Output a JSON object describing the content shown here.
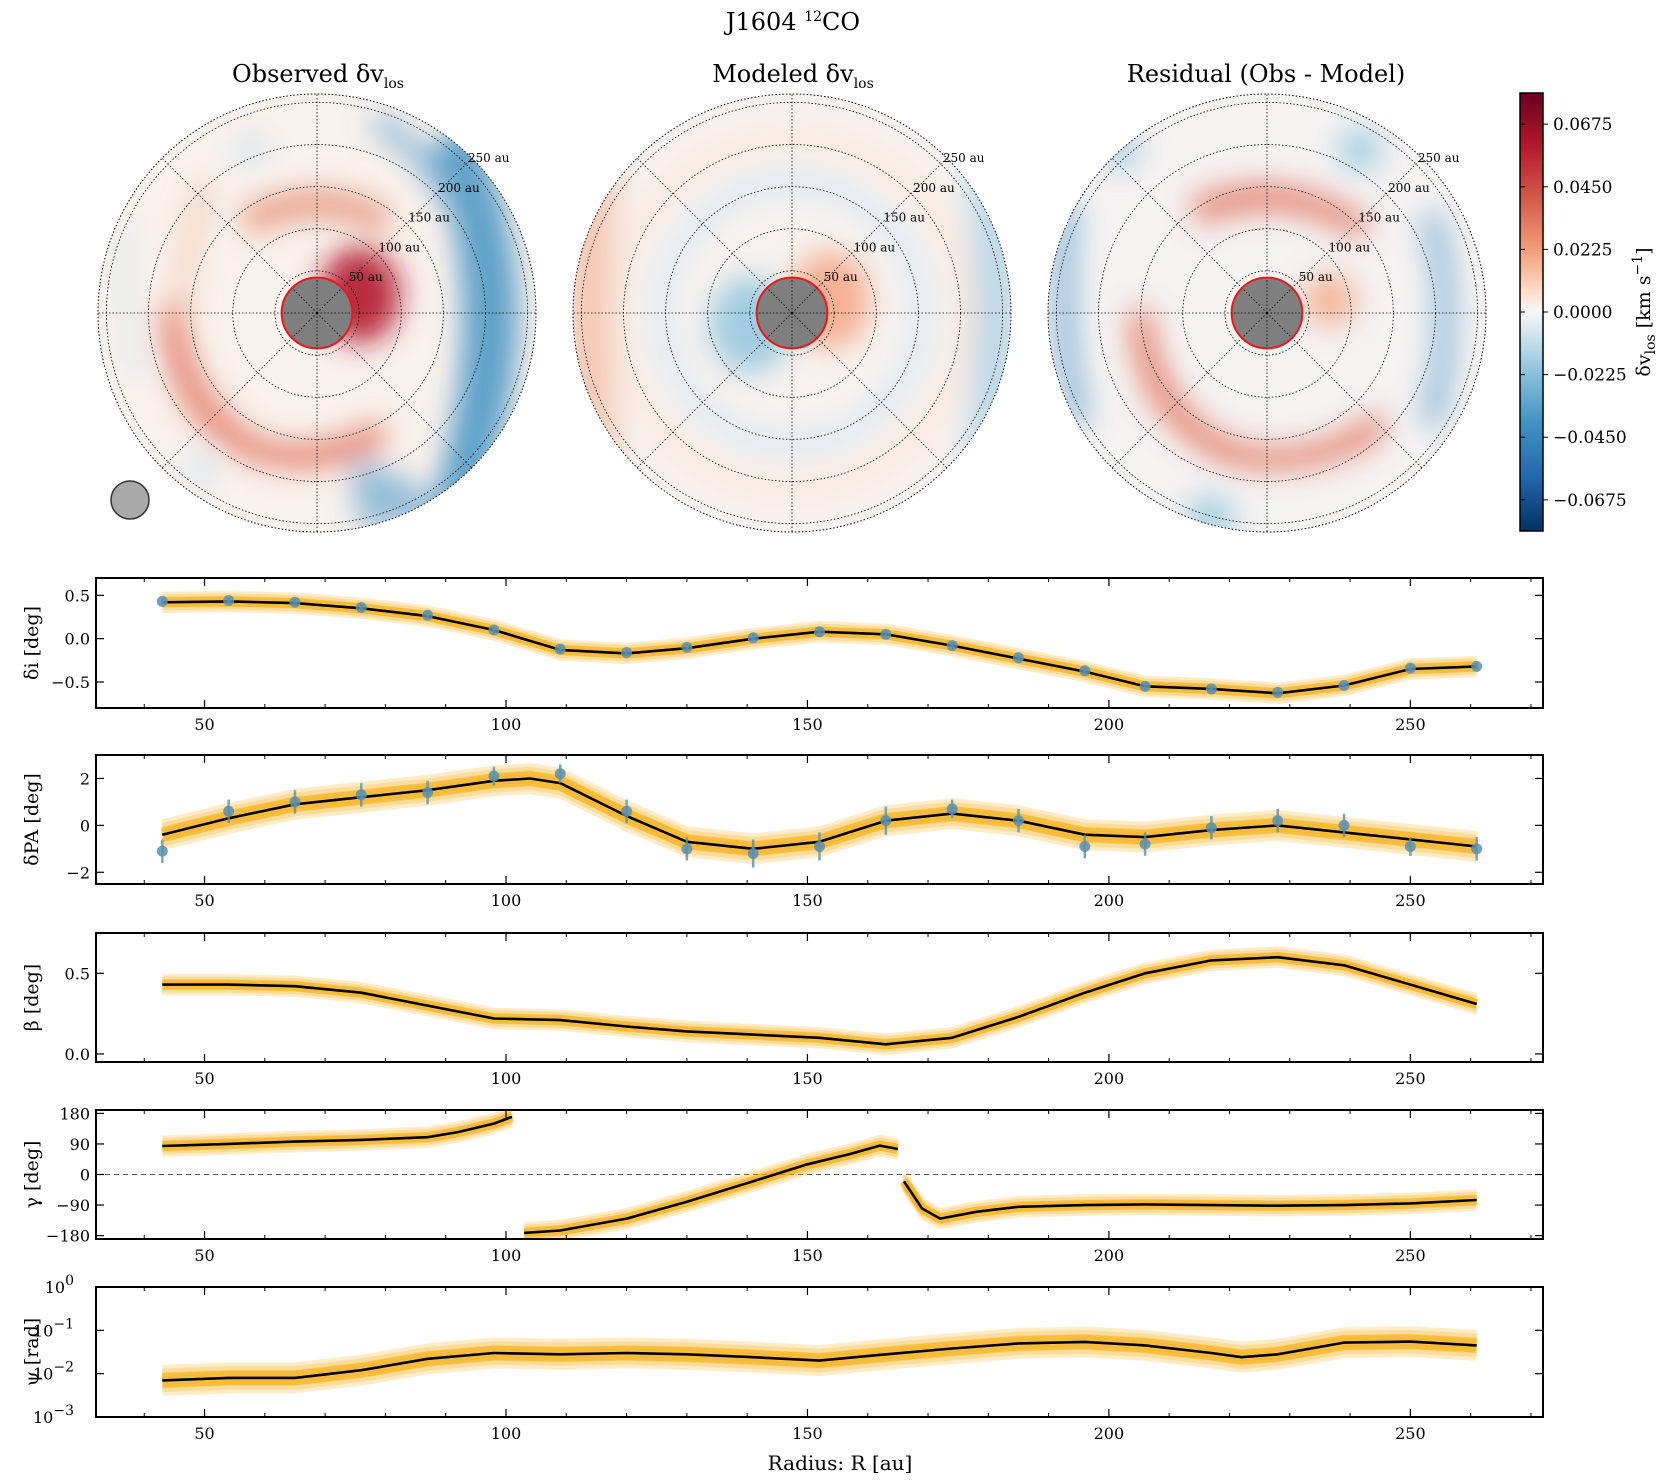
{
  "figure": {
    "title_main": "J1604 ",
    "title_sup": "12",
    "title_tail": "CO",
    "xlabel": "Radius: R [au]"
  },
  "polar_maps": [
    {
      "title": "Observed δv",
      "title_sub": "los"
    },
    {
      "title": "Modeled δv",
      "title_sub": "los"
    },
    {
      "title": "Residual (Obs - Model)",
      "title_sub": ""
    }
  ],
  "ring_labels": [
    "50 au",
    "100 au",
    "150 au",
    "200 au",
    "250 au"
  ],
  "colorbar": {
    "label": "δv",
    "label_sub": "los",
    "label_unit": " [km s",
    "label_sup": "−1",
    "label_close": "]",
    "ticks": [
      "0.0675",
      "0.0450",
      "0.0225",
      "0.0000",
      "−0.0225",
      "−0.0450",
      "−0.0675"
    ],
    "tick_values": [
      0.0675,
      0.045,
      0.0225,
      0.0,
      -0.0225,
      -0.045,
      -0.0675
    ],
    "range": [
      -0.0787,
      0.0787
    ],
    "cmap": [
      "#053061",
      "#2166ac",
      "#4393c3",
      "#92c5de",
      "#d1e5f0",
      "#f7f7f7",
      "#fddbc7",
      "#f4a582",
      "#d6604d",
      "#b2182b",
      "#67001f"
    ]
  },
  "colors": {
    "posterior": "#f5a800",
    "median": "#000000",
    "points": "#5b8fb0",
    "center_disk": "#7f7f7f",
    "inner_ring": "#e41a1c"
  },
  "chart_data": [
    {
      "type": "line",
      "ylabel": "δi [deg]",
      "ylim": [
        -0.8,
        0.7
      ],
      "yticks": [
        0.5,
        0.0,
        -0.5
      ],
      "ytick_labels": [
        "0.5",
        "0.0",
        "−0.5"
      ],
      "xlim": [
        32,
        272
      ],
      "xticks": [
        50,
        100,
        150,
        200,
        250
      ],
      "xtick_labels": [
        "50",
        "100",
        "150",
        "200",
        "250"
      ],
      "series": [
        {
          "x": [
            43,
            54,
            65,
            76,
            87,
            98,
            109,
            120,
            130,
            141,
            152,
            163,
            174,
            185,
            196,
            206,
            217,
            228,
            239,
            250,
            261
          ],
          "y": [
            0.42,
            0.43,
            0.41,
            0.35,
            0.26,
            0.1,
            -0.13,
            -0.17,
            -0.11,
            0.0,
            0.08,
            0.05,
            -0.08,
            -0.23,
            -0.38,
            -0.55,
            -0.58,
            -0.63,
            -0.54,
            -0.35,
            -0.32
          ]
        }
      ],
      "points": {
        "x": [
          43,
          54,
          65,
          76,
          87,
          98,
          109,
          120,
          130,
          141,
          152,
          163,
          174,
          185,
          196,
          206,
          217,
          228,
          239,
          250,
          261
        ],
        "y": [
          0.43,
          0.44,
          0.42,
          0.36,
          0.27,
          0.1,
          -0.12,
          -0.16,
          -0.1,
          0.01,
          0.08,
          0.05,
          -0.08,
          -0.22,
          -0.37,
          -0.55,
          -0.58,
          -0.62,
          -0.54,
          -0.34,
          -0.32
        ],
        "err": [
          0.04,
          0.04,
          0.04,
          0.04,
          0.04,
          0.04,
          0.04,
          0.04,
          0.04,
          0.04,
          0.05,
          0.04,
          0.04,
          0.04,
          0.04,
          0.04,
          0.04,
          0.04,
          0.04,
          0.04,
          0.04
        ]
      }
    },
    {
      "type": "line",
      "ylabel": "δPA [deg]",
      "ylim": [
        -2.5,
        3.0
      ],
      "yticks": [
        2,
        0,
        -2
      ],
      "ytick_labels": [
        "2",
        "0",
        "−2"
      ],
      "xlim": [
        32,
        272
      ],
      "xticks": [
        50,
        100,
        150,
        200,
        250
      ],
      "xtick_labels": [
        "50",
        "100",
        "150",
        "200",
        "250"
      ],
      "series": [
        {
          "x": [
            43,
            54,
            65,
            76,
            87,
            98,
            104,
            109,
            120,
            130,
            141,
            152,
            163,
            174,
            185,
            196,
            206,
            217,
            228,
            239,
            250,
            261
          ],
          "y": [
            -0.4,
            0.3,
            0.9,
            1.2,
            1.5,
            1.9,
            2.0,
            1.8,
            0.4,
            -0.7,
            -1.0,
            -0.7,
            0.2,
            0.5,
            0.2,
            -0.4,
            -0.5,
            -0.2,
            0.0,
            -0.3,
            -0.6,
            -0.9
          ]
        }
      ],
      "points": {
        "x": [
          43,
          54,
          65,
          76,
          87,
          98,
          109,
          120,
          130,
          141,
          152,
          163,
          174,
          185,
          196,
          206,
          217,
          228,
          239,
          250,
          261
        ],
        "y": [
          -1.1,
          0.6,
          1.0,
          1.3,
          1.4,
          2.1,
          2.2,
          0.6,
          -1.0,
          -1.2,
          -0.9,
          0.2,
          0.7,
          0.2,
          -0.9,
          -0.8,
          -0.1,
          0.2,
          0.0,
          -0.9,
          -1.0
        ],
        "err": [
          0.5,
          0.5,
          0.5,
          0.5,
          0.5,
          0.4,
          0.4,
          0.5,
          0.5,
          0.6,
          0.6,
          0.6,
          0.4,
          0.5,
          0.5,
          0.5,
          0.5,
          0.5,
          0.5,
          0.4,
          0.5
        ]
      }
    },
    {
      "type": "line",
      "ylabel": "β [deg]",
      "ylim": [
        -0.05,
        0.75
      ],
      "yticks": [
        0.5,
        0.0
      ],
      "ytick_labels": [
        "0.5",
        "0.0"
      ],
      "xlim": [
        32,
        272
      ],
      "xticks": [
        50,
        100,
        150,
        200,
        250
      ],
      "xtick_labels": [
        "50",
        "100",
        "150",
        "200",
        "250"
      ],
      "series": [
        {
          "x": [
            43,
            54,
            65,
            76,
            87,
            98,
            109,
            120,
            130,
            141,
            152,
            163,
            174,
            185,
            196,
            206,
            217,
            228,
            239,
            250,
            261
          ],
          "y": [
            0.43,
            0.43,
            0.42,
            0.38,
            0.3,
            0.22,
            0.21,
            0.17,
            0.14,
            0.12,
            0.1,
            0.06,
            0.1,
            0.23,
            0.38,
            0.5,
            0.58,
            0.6,
            0.55,
            0.43,
            0.31
          ]
        }
      ]
    },
    {
      "type": "line",
      "ylabel": "γ [deg]",
      "ylim": [
        -190,
        190
      ],
      "yticks": [
        180,
        90,
        0,
        -90,
        -180
      ],
      "ytick_labels": [
        "180",
        "90",
        "0",
        "−90",
        "−180"
      ],
      "xlim": [
        32,
        272
      ],
      "xticks": [
        50,
        100,
        150,
        200,
        250
      ],
      "xtick_labels": [
        "50",
        "100",
        "150",
        "200",
        "250"
      ],
      "zero_line": 0,
      "segments": [
        {
          "x": [
            43,
            54,
            65,
            76,
            87,
            92,
            98,
            101
          ],
          "y": [
            84,
            90,
            97,
            102,
            110,
            125,
            150,
            170
          ]
        },
        {
          "x": [
            103,
            109,
            120,
            130,
            141,
            150,
            157,
            162,
            165
          ],
          "y": [
            -172,
            -165,
            -130,
            -80,
            -20,
            30,
            60,
            85,
            75
          ]
        },
        {
          "x": [
            166,
            169,
            172,
            178,
            185,
            196,
            206,
            217,
            228,
            239,
            250,
            261
          ],
          "y": [
            -20,
            -100,
            -130,
            -110,
            -95,
            -90,
            -88,
            -90,
            -92,
            -90,
            -85,
            -75
          ]
        }
      ]
    },
    {
      "type": "line",
      "ylabel": "ψ [rad]",
      "yscale": "log",
      "ylim": [
        0.001,
        1.0
      ],
      "yticks": [
        1.0,
        0.1,
        0.01,
        0.001
      ],
      "ytick_labels": [
        "10",
        "10",
        "10",
        "10"
      ],
      "ytick_sups": [
        "0",
        "−1",
        "−2",
        "−3"
      ],
      "xlim": [
        32,
        272
      ],
      "xticks": [
        50,
        100,
        150,
        200,
        250
      ],
      "xtick_labels": [
        "50",
        "100",
        "150",
        "200",
        "250"
      ],
      "series": [
        {
          "x": [
            43,
            54,
            65,
            76,
            87,
            98,
            109,
            120,
            130,
            141,
            152,
            163,
            174,
            185,
            196,
            206,
            217,
            222,
            228,
            239,
            250,
            261
          ],
          "y": [
            0.007,
            0.008,
            0.008,
            0.012,
            0.022,
            0.03,
            0.028,
            0.03,
            0.028,
            0.024,
            0.02,
            0.028,
            0.038,
            0.05,
            0.054,
            0.045,
            0.03,
            0.024,
            0.028,
            0.052,
            0.055,
            0.045
          ]
        }
      ]
    }
  ]
}
